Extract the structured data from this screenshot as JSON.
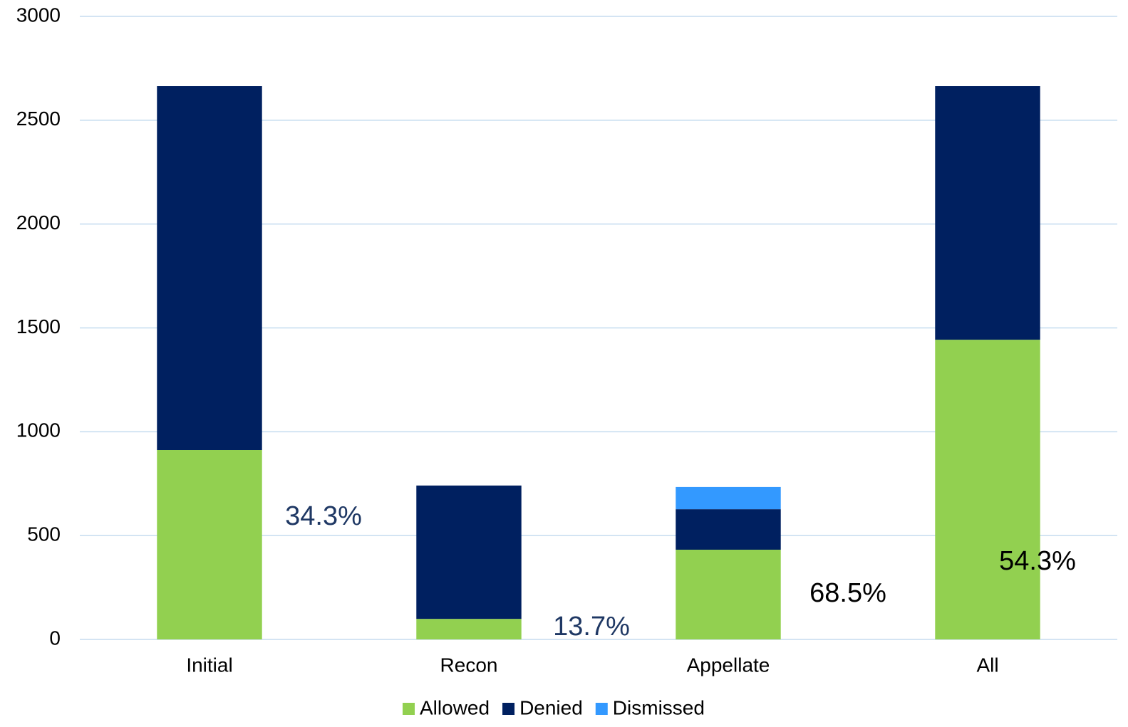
{
  "chart_data": {
    "type": "stacked_bar",
    "categories": [
      "Initial",
      "Recon",
      "Appellate",
      "All"
    ],
    "series": [
      {
        "name": "Allowed",
        "color": "#92d050",
        "values": [
          912,
          99,
          432,
          1443
        ]
      },
      {
        "name": "Denied",
        "color": "#002060",
        "values": [
          1752,
          642,
          195,
          1221
        ]
      },
      {
        "name": "Dismissed",
        "color": "#3399ff",
        "values": [
          0,
          0,
          107,
          0
        ]
      }
    ],
    "annotations": [
      {
        "text": "34.3%",
        "color": "#1f3864"
      },
      {
        "text": "13.7%",
        "color": "#1f3864"
      },
      {
        "text": "68.5%",
        "color": "#000000"
      },
      {
        "text": "54.3%",
        "color": "#000000"
      }
    ],
    "ylim": [
      0,
      3000
    ],
    "yticks": [
      0,
      500,
      1000,
      1500,
      2000,
      2500,
      3000
    ],
    "grid": true,
    "legend": "bottom"
  }
}
